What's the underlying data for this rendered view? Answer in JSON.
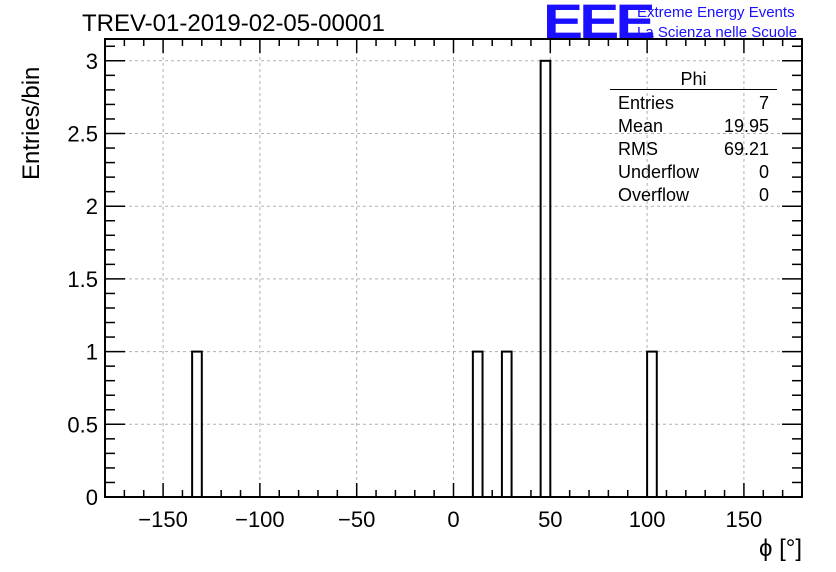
{
  "header": {
    "title": "TREV-01-2019-02-05-00001",
    "logo": "EEE",
    "logo_line1": "Extreme Energy Events",
    "logo_line2": "La Scienza nelle Scuole"
  },
  "stats_box": {
    "name": "Phi",
    "rows": [
      {
        "label": "Entries",
        "value": "7"
      },
      {
        "label": "Mean",
        "value": "19.95"
      },
      {
        "label": "RMS",
        "value": "69.21"
      },
      {
        "label": "Underflow",
        "value": "0"
      },
      {
        "label": "Overflow",
        "value": "0"
      }
    ]
  },
  "chart_data": {
    "type": "bar",
    "histogram": true,
    "bin_width": 5,
    "xlabel": "ϕ [°]",
    "ylabel": "Entries/bin",
    "xlim": [
      -180,
      180
    ],
    "ylim": [
      0,
      3.15
    ],
    "xticks": [
      -150,
      -100,
      -50,
      0,
      50,
      100,
      150
    ],
    "xtick_labels": [
      "−150",
      "−100",
      "−50",
      "0",
      "50",
      "100",
      "150"
    ],
    "yticks": [
      0,
      0.5,
      1,
      1.5,
      2,
      2.5,
      3
    ],
    "ytick_labels": [
      "0",
      "0.5",
      "1",
      "1.5",
      "2",
      "2.5",
      "3"
    ],
    "grid": true,
    "bins": [
      {
        "x0": -135,
        "x1": -130,
        "count": 1
      },
      {
        "x0": 10,
        "x1": 15,
        "count": 1
      },
      {
        "x0": 25,
        "x1": 30,
        "count": 1
      },
      {
        "x0": 45,
        "x1": 50,
        "count": 3
      },
      {
        "x0": 100,
        "x1": 105,
        "count": 1
      }
    ]
  }
}
